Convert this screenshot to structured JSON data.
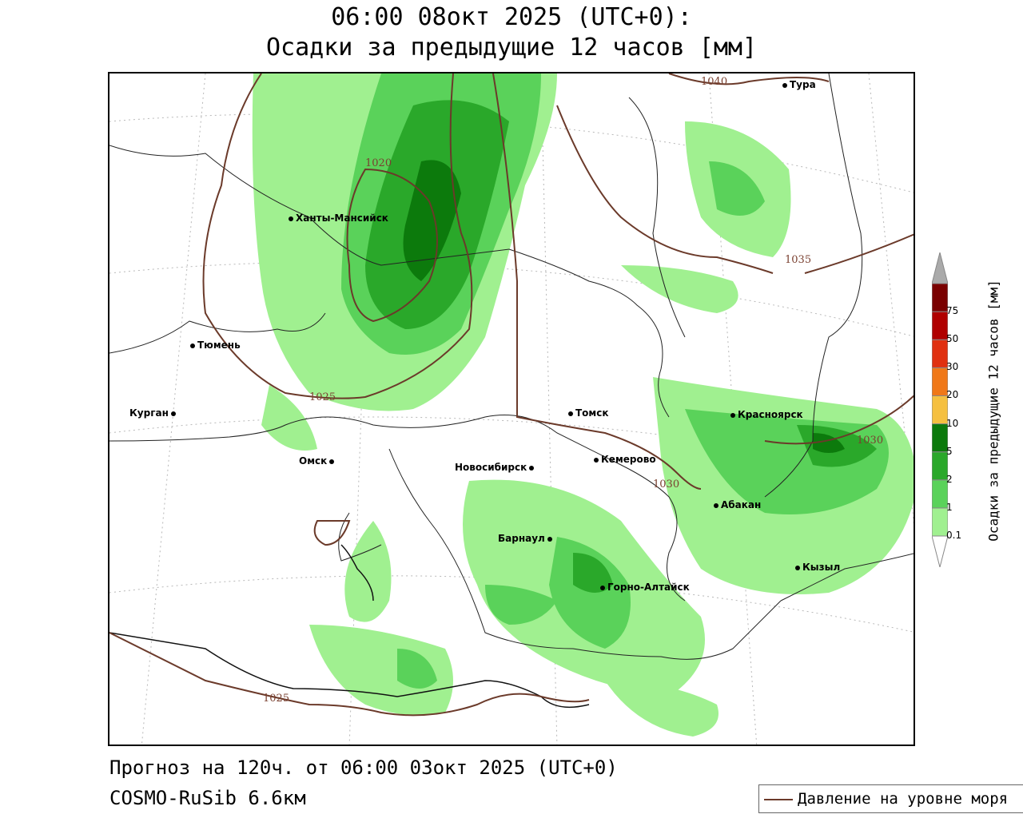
{
  "header": {
    "line1": "06:00 08окт 2025 (UTC+0):",
    "line2": "Осадки за предыдущие 12 часов [мм]"
  },
  "footer": {
    "forecast": "Прогноз на 120ч. от 06:00 03окт 2025 (UTC+0)",
    "model": "COSMO-RuSib 6.6км"
  },
  "legend": {
    "pressure_label": "Давление на уровне моря",
    "pressure_color": "#6b3a2a"
  },
  "colorbar": {
    "title": "Осадки за предыдущие 12 часов [мм]",
    "levels": [
      "0.1",
      "1",
      "2",
      "5",
      "10",
      "20",
      "30",
      "50",
      "75"
    ],
    "colors": [
      "#ffffff",
      "#a0f090",
      "#5ad25a",
      "#2aa82a",
      "#0c7a0c",
      "#f5c040",
      "#f07818",
      "#e03010",
      "#b00000",
      "#7a0000",
      "#aaaaaa"
    ]
  },
  "cities": [
    {
      "name": "Тура"
    },
    {
      "name": "Ханты-Мансийск"
    },
    {
      "name": "Тюмень"
    },
    {
      "name": "Курган"
    },
    {
      "name": "Омск"
    },
    {
      "name": "Томск"
    },
    {
      "name": "Красноярск"
    },
    {
      "name": "Новосибирск"
    },
    {
      "name": "Кемерово"
    },
    {
      "name": "Абакан"
    },
    {
      "name": "Барнаул"
    },
    {
      "name": "Горно-Алтайск"
    },
    {
      "name": "Кызыл"
    }
  ],
  "isobars": [
    "1040",
    "1020",
    "1035",
    "1025",
    "1030",
    "1030",
    "1025"
  ]
}
